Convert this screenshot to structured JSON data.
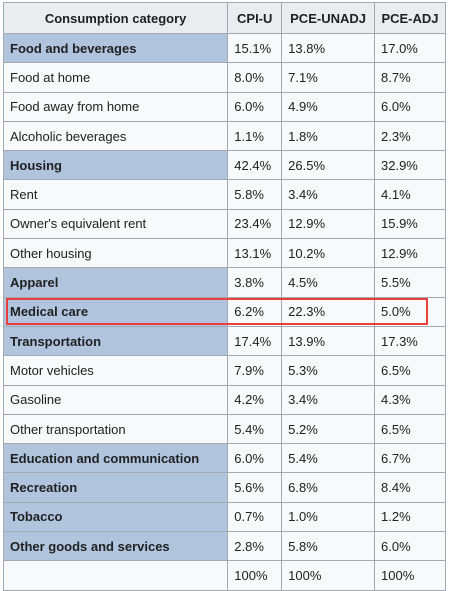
{
  "table": {
    "header": [
      "Consumption category",
      "CPI-U",
      "PCE-UNADJ",
      "PCE-ADJ"
    ],
    "rows": [
      {
        "cells": [
          "Food and beverages",
          "15.1%",
          "13.8%",
          "17.0%"
        ],
        "category": true
      },
      {
        "cells": [
          "Food at home",
          "8.0%",
          "7.1%",
          "8.7%"
        ],
        "category": false
      },
      {
        "cells": [
          "Food away from home",
          "6.0%",
          "4.9%",
          "6.0%"
        ],
        "category": false
      },
      {
        "cells": [
          "Alcoholic beverages",
          "1.1%",
          "1.8%",
          "2.3%"
        ],
        "category": false
      },
      {
        "cells": [
          "Housing",
          "42.4%",
          "26.5%",
          "32.9%"
        ],
        "category": true
      },
      {
        "cells": [
          "Rent",
          "5.8%",
          "3.4%",
          "4.1%"
        ],
        "category": false
      },
      {
        "cells": [
          "Owner's equivalent rent",
          "23.4%",
          "12.9%",
          "15.9%"
        ],
        "category": false
      },
      {
        "cells": [
          "Other housing",
          "13.1%",
          "10.2%",
          "12.9%"
        ],
        "category": false
      },
      {
        "cells": [
          "Apparel",
          "3.8%",
          "4.5%",
          "5.5%"
        ],
        "category": true
      },
      {
        "cells": [
          "Medical care",
          "6.2%",
          "22.3%",
          "5.0%"
        ],
        "category": true,
        "highlight": true
      },
      {
        "cells": [
          "Transportation",
          "17.4%",
          "13.9%",
          "17.3%"
        ],
        "category": true
      },
      {
        "cells": [
          "Motor vehicles",
          "7.9%",
          "5.3%",
          "6.5%"
        ],
        "category": false
      },
      {
        "cells": [
          "Gasoline",
          "4.2%",
          "3.4%",
          "4.3%"
        ],
        "category": false
      },
      {
        "cells": [
          "Other transportation",
          "5.4%",
          "5.2%",
          "6.5%"
        ],
        "category": false
      },
      {
        "cells": [
          "Education and communication",
          "6.0%",
          "5.4%",
          "6.7%"
        ],
        "category": true
      },
      {
        "cells": [
          "Recreation",
          "5.6%",
          "6.8%",
          "8.4%"
        ],
        "category": true
      },
      {
        "cells": [
          "Tobacco",
          "0.7%",
          "1.0%",
          "1.2%"
        ],
        "category": true
      },
      {
        "cells": [
          "Other goods and services",
          "2.8%",
          "5.8%",
          "6.0%"
        ],
        "category": true
      },
      {
        "cells": [
          null,
          "100%",
          "100%",
          "100%"
        ],
        "category": false
      }
    ]
  }
}
